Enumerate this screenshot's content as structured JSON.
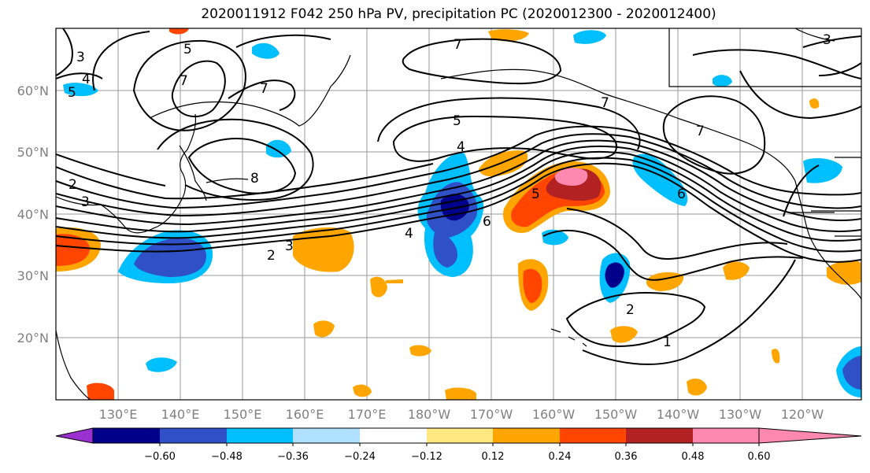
{
  "title": "2020011912 F042 250 hPa PV, precipitation PC (2020012300 - 2020012400)",
  "lat_labels": [
    "60°N",
    "50°N",
    "40°N",
    "30°N",
    "20°N"
  ],
  "lon_labels": [
    "130°E",
    "140°E",
    "150°E",
    "160°E",
    "170°E",
    "180°W",
    "170°W",
    "160°W",
    "150°W",
    "140°W",
    "130°W",
    "120°W"
  ],
  "colorbar": {
    "colors": [
      "#9b30d0",
      "#00008b",
      "#3050c8",
      "#00bfff",
      "#b0e0ff",
      "#ffffff",
      "#ffe880",
      "#ffa500",
      "#ff4500",
      "#b22222",
      "#ff88b0"
    ],
    "tick_labels": [
      "−0.60",
      "−0.48",
      "−0.36",
      "−0.24",
      "−0.12",
      "0.12",
      "0.24",
      "0.36",
      "0.48",
      "0.60"
    ]
  },
  "contour_labels": [
    "3",
    "5",
    "4",
    "7",
    "7",
    "7",
    "5",
    "4",
    "5",
    "7",
    "3",
    "7",
    "8",
    "2",
    "3",
    "3",
    "2",
    "4",
    "6",
    "5",
    "6",
    "2",
    "1"
  ]
}
